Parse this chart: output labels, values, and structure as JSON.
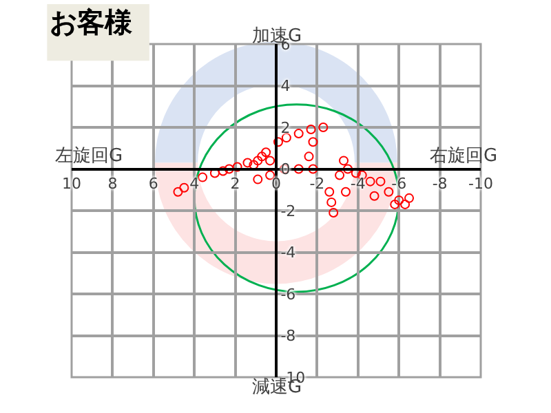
{
  "chart_data": {
    "type": "scatter",
    "title": "お客様",
    "annotations": [
      "加速G",
      "減速G",
      "左旋回G",
      "右旋回G"
    ],
    "xlim": [
      10,
      -10
    ],
    "xticks": [
      10,
      8,
      6,
      4,
      2,
      0,
      -2,
      -4,
      -6,
      -8,
      -10
    ],
    "ylim": [
      -10,
      6
    ],
    "yticks": [
      -10,
      -8,
      -6,
      -4,
      -2,
      0,
      2,
      4,
      6
    ],
    "grid": true,
    "marker": "circle",
    "series": [
      {
        "color": "#ff0000",
        "x": [
          4.8,
          4.5,
          3.6,
          3.0,
          2.6,
          2.3,
          1.9,
          1.4,
          1.1,
          0.9,
          0.7,
          0.5,
          0.3,
          0.9,
          0.3,
          -0.1,
          -0.5,
          -1.1,
          -1.7,
          -2.3,
          -1.8,
          -1.6,
          -0.4,
          -1.1,
          -1.8,
          -2.6,
          -2.8,
          -2.7,
          -3.1,
          -3.3,
          -3.5,
          -3.4,
          -3.9,
          -4.2,
          -4.8,
          -4.6,
          -5.1,
          -5.5,
          -5.8,
          -6.0,
          -6.5,
          -6.3
        ],
        "values": [
          -1.1,
          -0.9,
          -0.4,
          -0.2,
          -0.1,
          0.0,
          0.1,
          0.3,
          0.2,
          0.4,
          0.6,
          0.8,
          0.4,
          -0.5,
          -0.3,
          1.3,
          1.5,
          1.7,
          1.9,
          2.0,
          1.3,
          0.6,
          0.0,
          0.0,
          0.0,
          -1.1,
          -2.1,
          -1.6,
          -0.3,
          0.4,
          0.0,
          -1.1,
          -0.2,
          -0.3,
          -1.3,
          -0.6,
          -0.6,
          -1.1,
          -1.7,
          -1.5,
          -1.4,
          -1.7
        ]
      }
    ]
  }
}
